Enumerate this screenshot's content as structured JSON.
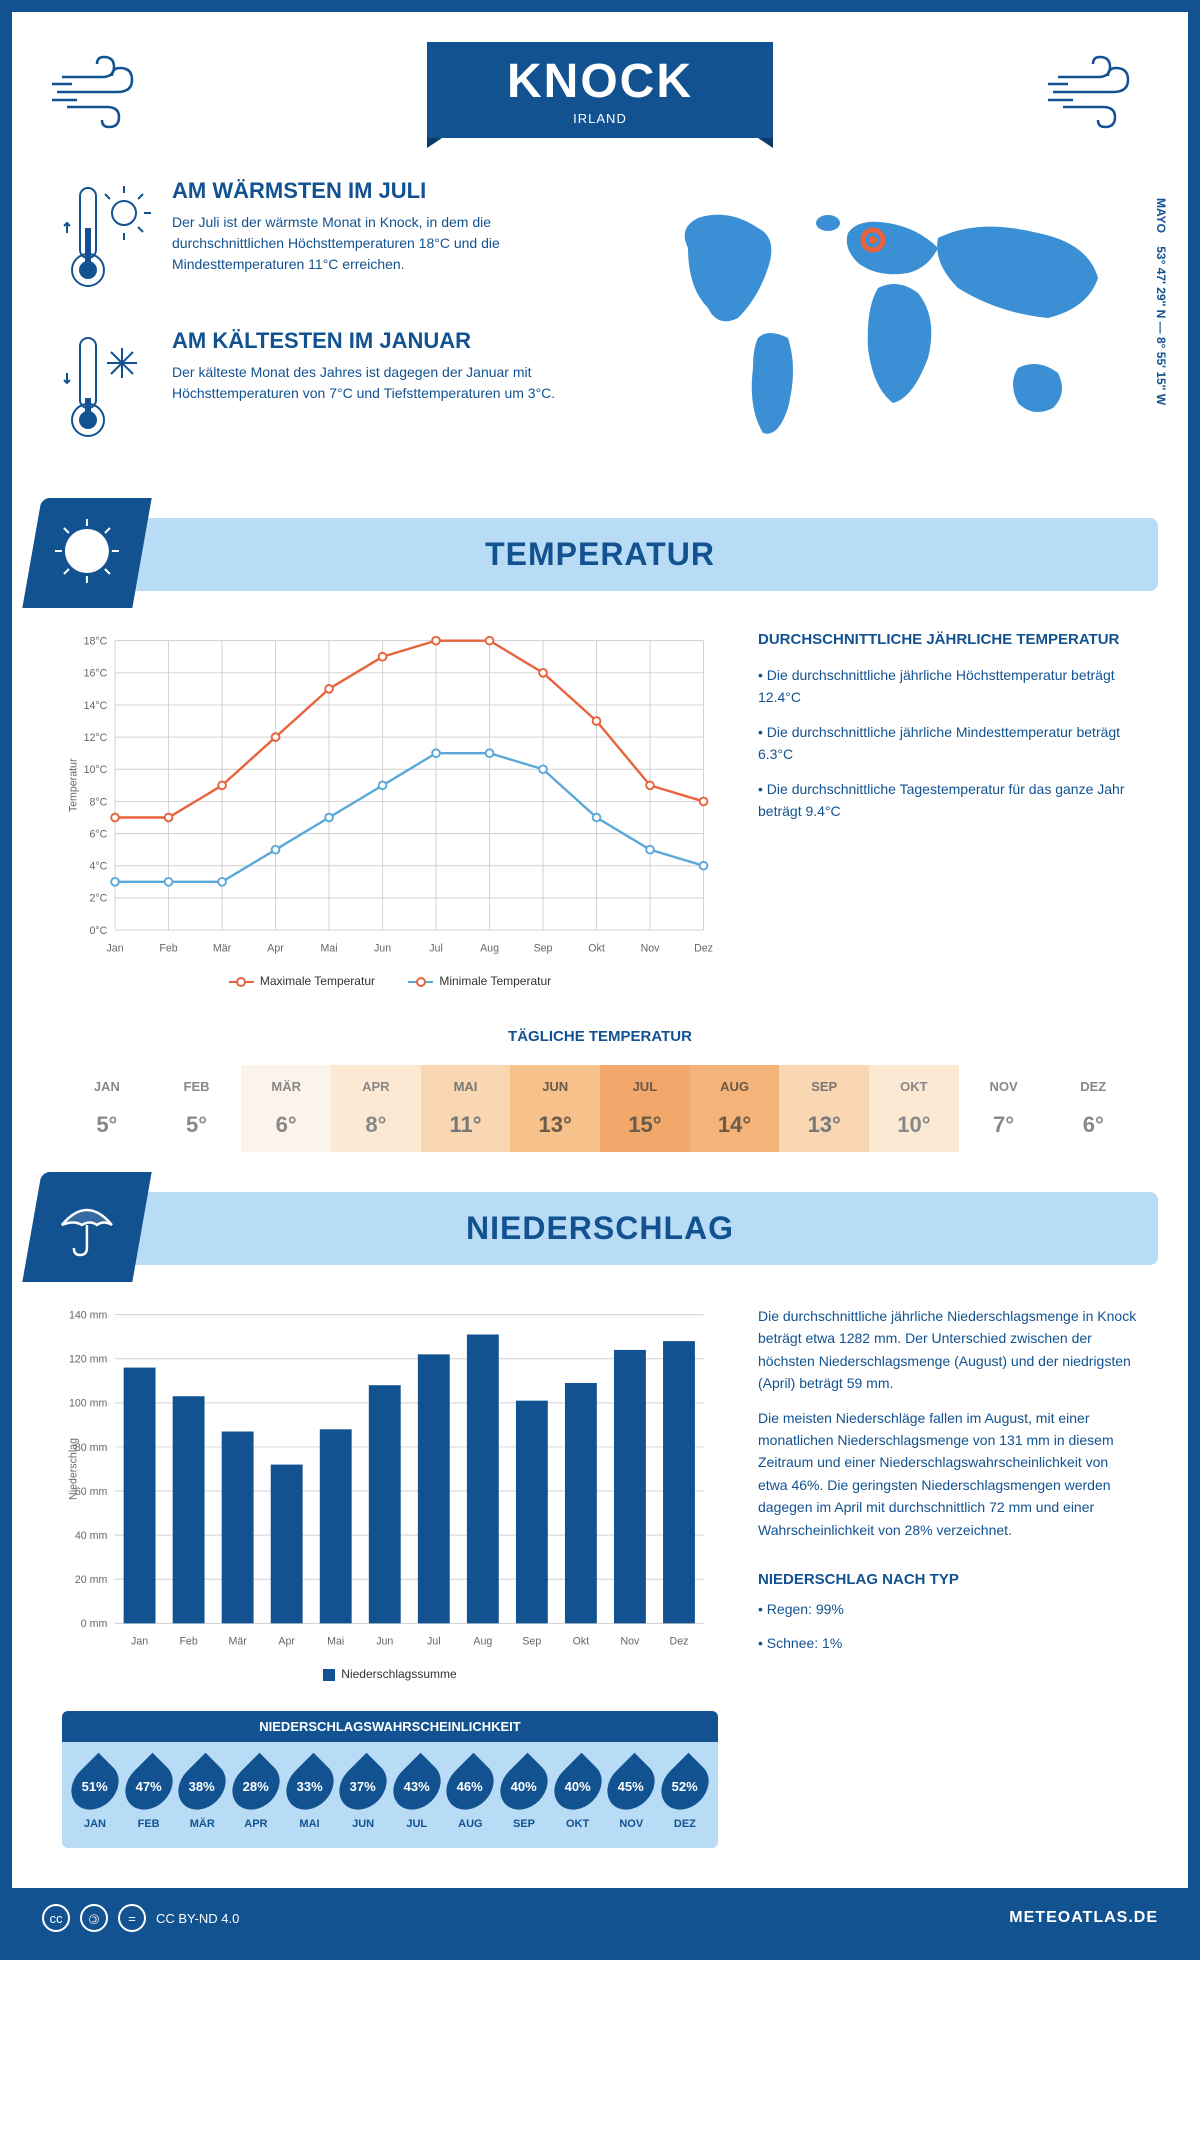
{
  "header": {
    "city": "KNOCK",
    "country": "IRLAND"
  },
  "coords": "53° 47' 29'' N — 8° 55' 15'' W",
  "region": "MAYO",
  "warmFact": {
    "title": "AM WÄRMSTEN IM JULI",
    "text": "Der Juli ist der wärmste Monat in Knock, in dem die durchschnittlichen Höchsttemperaturen 18°C und die Mindesttemperaturen 11°C erreichen."
  },
  "coldFact": {
    "title": "AM KÄLTESTEN IM JANUAR",
    "text": "Der kälteste Monat des Jahres ist dagegen der Januar mit Höchsttemperaturen von 7°C und Tiefsttemperaturen um 3°C."
  },
  "tempSection": {
    "title": "TEMPERATUR",
    "sideTitle": "DURCHSCHNITTLICHE JÄHRLICHE TEMPERATUR",
    "bullets": [
      "• Die durchschnittliche jährliche Höchsttemperatur beträgt 12.4°C",
      "• Die durchschnittliche jährliche Mindesttemperatur beträgt 6.3°C",
      "• Die durchschnittliche Tagestemperatur für das ganze Jahr beträgt 9.4°C"
    ]
  },
  "tempChart": {
    "type": "line",
    "months": [
      "Jan",
      "Feb",
      "Mär",
      "Apr",
      "Mai",
      "Jun",
      "Jul",
      "Aug",
      "Sep",
      "Okt",
      "Nov",
      "Dez"
    ],
    "max": {
      "label": "Maximale Temperatur",
      "color": "#e8623b",
      "values": [
        7,
        7,
        9,
        12,
        15,
        17,
        18,
        18,
        16,
        13,
        9,
        8
      ]
    },
    "min": {
      "label": "Minimale Temperatur",
      "color": "#5aa8d9",
      "values": [
        3,
        3,
        3,
        5,
        7,
        9,
        11,
        11,
        10,
        7,
        5,
        4
      ]
    },
    "ylabel": "Temperatur",
    "ylim": [
      0,
      18
    ],
    "ytick": 2,
    "grid_color": "#d0d0d0"
  },
  "dailyTemp": {
    "title": "TÄGLICHE TEMPERATUR",
    "months": [
      "JAN",
      "FEB",
      "MÄR",
      "APR",
      "MAI",
      "JUN",
      "JUL",
      "AUG",
      "SEP",
      "OKT",
      "NOV",
      "DEZ"
    ],
    "values": [
      5,
      5,
      6,
      8,
      11,
      13,
      15,
      14,
      13,
      10,
      7,
      6
    ],
    "colors": [
      "#ffffff",
      "#ffffff",
      "#fcf4ea",
      "#fbe9d4",
      "#f9d7b3",
      "#f6c18b",
      "#f2a86a",
      "#f4b479",
      "#f9d7b3",
      "#fbe9d4",
      "#ffffff",
      "#ffffff"
    ],
    "text_colors": [
      "#888",
      "#888",
      "#888",
      "#888",
      "#777",
      "#6a5a48",
      "#6a5a48",
      "#6a5a48",
      "#777",
      "#888",
      "#888",
      "#888"
    ]
  },
  "precipSection": {
    "title": "NIEDERSCHLAG",
    "text1": "Die durchschnittliche jährliche Niederschlagsmenge in Knock beträgt etwa 1282 mm. Der Unterschied zwischen der höchsten Niederschlagsmenge (August) und der niedrigsten (April) beträgt 59 mm.",
    "text2": "Die meisten Niederschläge fallen im August, mit einer monatlichen Niederschlagsmenge von 131 mm in diesem Zeitraum und einer Niederschlagswahrscheinlichkeit von etwa 46%. Die geringsten Niederschlagsmengen werden dagegen im April mit durchschnittlich 72 mm und einer Wahrscheinlichkeit von 28% verzeichnet."
  },
  "precipChart": {
    "type": "bar",
    "months": [
      "Jan",
      "Feb",
      "Mär",
      "Apr",
      "Mai",
      "Jun",
      "Jul",
      "Aug",
      "Sep",
      "Okt",
      "Nov",
      "Dez"
    ],
    "values": [
      116,
      103,
      87,
      72,
      88,
      108,
      122,
      131,
      101,
      109,
      124,
      128
    ],
    "color": "#125291",
    "ylabel": "Niederschlag",
    "legend": "Niederschlagssumme",
    "ylim": [
      0,
      140
    ],
    "ytick": 20,
    "grid_color": "#d0d0d0"
  },
  "precipProb": {
    "title": "NIEDERSCHLAGSWAHRSCHEINLICHKEIT",
    "months": [
      "JAN",
      "FEB",
      "MÄR",
      "APR",
      "MAI",
      "JUN",
      "JUL",
      "AUG",
      "SEP",
      "OKT",
      "NOV",
      "DEZ"
    ],
    "values": [
      "51%",
      "47%",
      "38%",
      "28%",
      "33%",
      "37%",
      "43%",
      "46%",
      "40%",
      "40%",
      "45%",
      "52%"
    ]
  },
  "precipTypes": {
    "title": "NIEDERSCHLAG NACH TYP",
    "lines": [
      "• Regen: 99%",
      "• Schnee: 1%"
    ]
  },
  "footer": {
    "license": "CC BY-ND 4.0",
    "site": "METEOATLAS.DE"
  }
}
